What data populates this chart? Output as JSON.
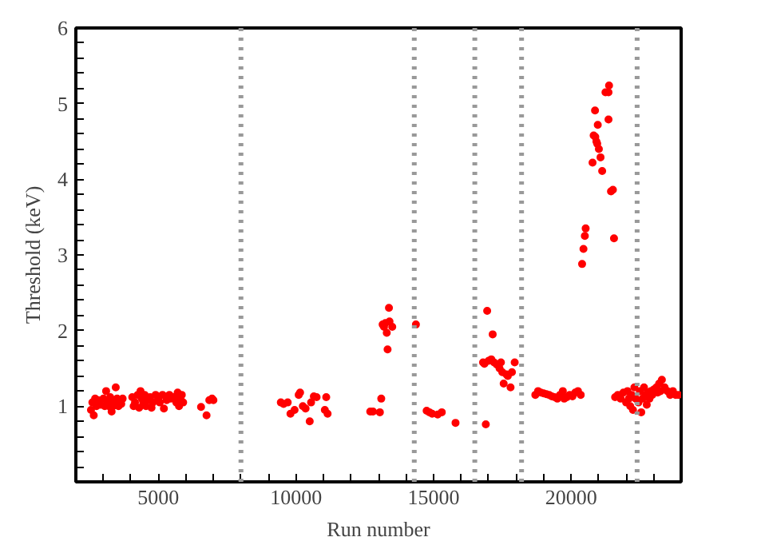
{
  "chart_data": {
    "type": "scatter",
    "xlabel": "Run number",
    "ylabel": "Threshold (keV)",
    "xlim": [
      2000,
      24000
    ],
    "ylim": [
      0,
      6
    ],
    "xticks": [
      5000,
      10000,
      15000,
      20000,
      {
        "value": 3000,
        "label": null
      },
      {
        "value": 4000,
        "label": null
      },
      {
        "value": 6000,
        "label": null
      },
      {
        "value": 7000,
        "label": null
      },
      {
        "value": 8000,
        "label": null
      },
      {
        "value": 9000,
        "label": null
      },
      {
        "value": 11000,
        "label": null
      },
      {
        "value": 12000,
        "label": null
      },
      {
        "value": 13000,
        "label": null
      },
      {
        "value": 14000,
        "label": null
      },
      {
        "value": 16000,
        "label": null
      },
      {
        "value": 17000,
        "label": null
      },
      {
        "value": 18000,
        "label": null
      },
      {
        "value": 19000,
        "label": null
      },
      {
        "value": 21000,
        "label": null
      },
      {
        "value": 22000,
        "label": null
      },
      {
        "value": 23000,
        "label": null
      }
    ],
    "yticks": [
      1,
      2,
      3,
      4,
      5,
      6,
      {
        "value": 0.2,
        "label": null
      },
      {
        "value": 0.4,
        "label": null
      },
      {
        "value": 0.6,
        "label": null
      },
      {
        "value": 0.8,
        "label": null
      },
      {
        "value": 1.2,
        "label": null
      },
      {
        "value": 1.4,
        "label": null
      },
      {
        "value": 1.6,
        "label": null
      },
      {
        "value": 1.8,
        "label": null
      },
      {
        "value": 2.2,
        "label": null
      },
      {
        "value": 2.4,
        "label": null
      },
      {
        "value": 2.6,
        "label": null
      },
      {
        "value": 2.8,
        "label": null
      },
      {
        "value": 3.2,
        "label": null
      },
      {
        "value": 3.4,
        "label": null
      },
      {
        "value": 3.6,
        "label": null
      },
      {
        "value": 3.8,
        "label": null
      },
      {
        "value": 4.2,
        "label": null
      },
      {
        "value": 4.4,
        "label": null
      },
      {
        "value": 4.6,
        "label": null
      },
      {
        "value": 4.8,
        "label": null
      },
      {
        "value": 5.2,
        "label": null
      },
      {
        "value": 5.4,
        "label": null
      },
      {
        "value": 5.6,
        "label": null
      },
      {
        "value": 5.8,
        "label": null
      }
    ],
    "grid": false,
    "marker": "circle",
    "ref_lines": [
      {
        "axis": "x",
        "value": 8000,
        "label": null,
        "color": "#999999",
        "line_style": "dotted"
      },
      {
        "axis": "x",
        "value": 14300,
        "label": null,
        "color": "#999999",
        "line_style": "dotted"
      },
      {
        "axis": "x",
        "value": 16500,
        "label": null,
        "color": "#999999",
        "line_style": "dotted"
      },
      {
        "axis": "x",
        "value": 18200,
        "label": null,
        "color": "#999999",
        "line_style": "dotted"
      },
      {
        "axis": "x",
        "value": 22400,
        "label": null,
        "color": "#999999",
        "line_style": "dotted"
      }
    ],
    "series": [
      {
        "color": "#ff0000",
        "x": [
          2550,
          2600,
          2650,
          2700,
          2750,
          2800,
          2900,
          3000,
          3050,
          3100,
          3150,
          3200,
          3250,
          3300,
          3350,
          3400,
          3450,
          3500,
          3550,
          3650,
          3700,
          4050,
          4100,
          4150,
          4250,
          4300,
          4350,
          4400,
          4450,
          4500,
          4550,
          4600,
          4700,
          4750,
          4800,
          4900,
          5000,
          5050,
          5150,
          5200,
          5300,
          5400,
          5450,
          5550,
          5650,
          5700,
          5750,
          5800,
          5850,
          5900,
          6550,
          6750,
          6850,
          6950,
          7000,
          9450,
          9550,
          9700,
          9800,
          9950,
          10100,
          10150,
          10250,
          10350,
          10500,
          10550,
          10650,
          10750,
          11050,
          11100,
          11150,
          12700,
          12800,
          13050,
          13100,
          13150,
          13200,
          13250,
          13300,
          13330,
          13380,
          13400,
          13500,
          14360,
          14750,
          14850,
          14950,
          15150,
          15300,
          15800,
          16800,
          16850,
          16900,
          16950,
          17000,
          17100,
          17150,
          17200,
          17300,
          17400,
          17450,
          17500,
          17550,
          17650,
          17700,
          17800,
          17850,
          17950,
          18700,
          18800,
          18900,
          19000,
          19100,
          19200,
          19300,
          19400,
          19500,
          19600,
          19700,
          19750,
          19850,
          19950,
          20050,
          20150,
          20250,
          20350,
          20400,
          20450,
          20500,
          20530,
          20780,
          20820,
          20870,
          20880,
          20920,
          20950,
          20970,
          21010,
          21070,
          21130,
          21250,
          21360,
          21360,
          21380,
          21450,
          21520,
          21560,
          21600,
          21700,
          21800,
          21900,
          22000,
          22050,
          22100,
          22150,
          22200,
          22250,
          22300,
          22350,
          22450,
          22500,
          22550,
          22600,
          22650,
          22700,
          22750,
          22800,
          22850,
          22900,
          22950,
          23000,
          23100,
          23150,
          23200,
          23250,
          23300,
          23400,
          23500,
          23600,
          23700,
          23800,
          23900
        ],
        "values": [
          0.95,
          1.05,
          0.88,
          1.1,
          1.0,
          1.08,
          1.02,
          1.1,
          1.0,
          1.2,
          1.05,
          1.0,
          1.12,
          0.93,
          1.0,
          1.05,
          1.25,
          1.1,
          1.0,
          1.03,
          1.1,
          1.12,
          1.0,
          1.05,
          1.15,
          0.98,
          1.2,
          1.1,
          1.05,
          1.15,
          1.0,
          1.08,
          1.12,
          0.98,
          1.05,
          1.15,
          1.1,
          1.05,
          1.15,
          0.97,
          1.08,
          1.15,
          1.1,
          1.12,
          1.05,
          1.18,
          1.0,
          1.1,
          1.15,
          1.05,
          0.99,
          0.88,
          1.08,
          1.1,
          1.08,
          1.05,
          1.03,
          1.05,
          0.9,
          0.95,
          1.15,
          1.18,
          1.0,
          0.97,
          0.8,
          1.05,
          1.13,
          1.12,
          0.95,
          1.12,
          0.9,
          0.93,
          0.93,
          0.92,
          1.1,
          2.08,
          2.05,
          2.1,
          1.97,
          1.75,
          2.3,
          2.12,
          2.05,
          2.08,
          0.94,
          0.92,
          0.9,
          0.89,
          0.92,
          0.78,
          1.58,
          1.56,
          0.76,
          2.26,
          1.6,
          1.62,
          1.95,
          1.58,
          1.55,
          1.5,
          1.58,
          1.45,
          1.3,
          1.42,
          1.4,
          1.25,
          1.45,
          1.58,
          1.15,
          1.2,
          1.18,
          1.17,
          1.16,
          1.15,
          1.13,
          1.12,
          1.1,
          1.15,
          1.2,
          1.1,
          1.12,
          1.15,
          1.13,
          1.18,
          1.2,
          1.15,
          2.88,
          3.08,
          3.25,
          3.35,
          4.22,
          4.58,
          4.91,
          4.56,
          4.5,
          4.47,
          4.72,
          4.4,
          4.29,
          4.11,
          5.15,
          5.15,
          4.79,
          5.24,
          3.84,
          3.86,
          3.22,
          1.12,
          1.15,
          1.1,
          1.18,
          1.05,
          1.2,
          1.1,
          1.0,
          1.15,
          0.95,
          1.25,
          1.1,
          1.05,
          1.2,
          0.92,
          1.1,
          1.25,
          1.15,
          1.02,
          1.18,
          1.1,
          1.2,
          1.15,
          1.22,
          1.25,
          1.18,
          1.3,
          1.2,
          1.35,
          1.25,
          1.2,
          1.15,
          1.2,
          1.15,
          1.15
        ]
      }
    ]
  }
}
